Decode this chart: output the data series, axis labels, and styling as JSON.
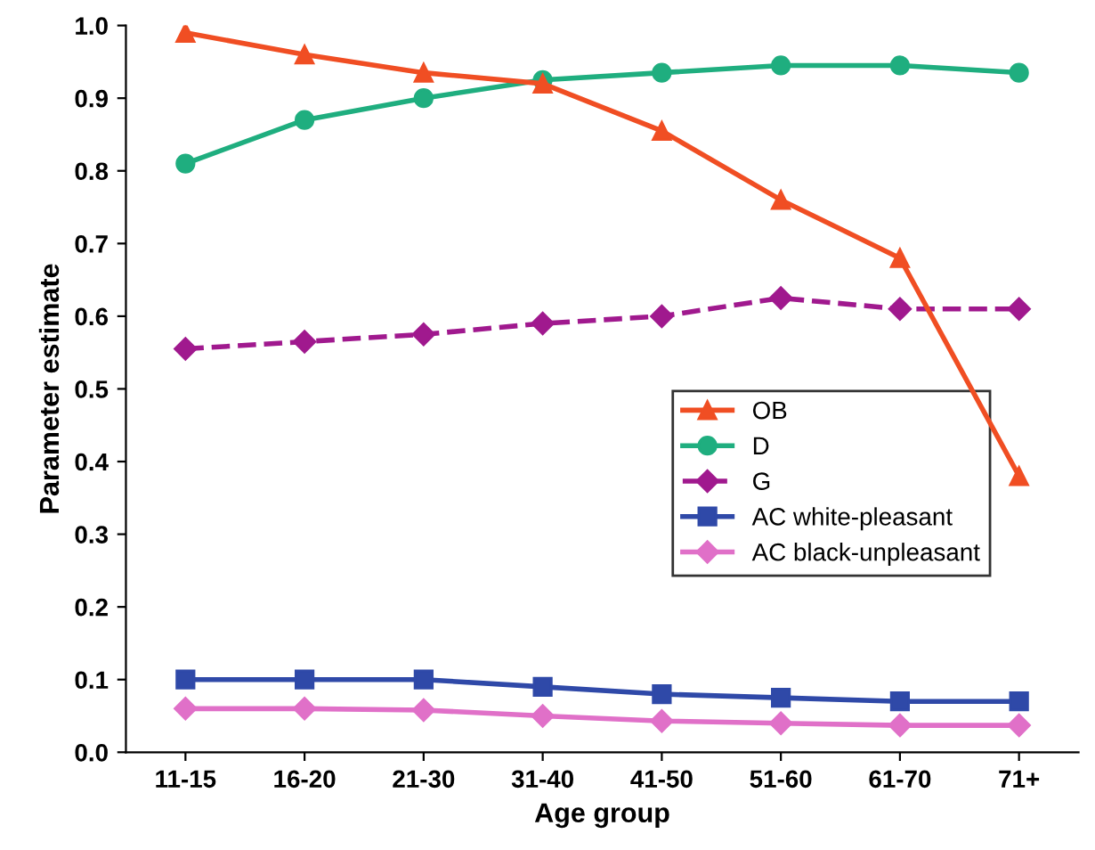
{
  "chart_data": {
    "type": "line",
    "xlabel": "Age group",
    "ylabel": "Parameter estimate",
    "categories": [
      "11-15",
      "16-20",
      "21-30",
      "31-40",
      "41-50",
      "51-60",
      "61-70",
      "71+"
    ],
    "series": [
      {
        "name": "OB",
        "color": "#f04e23",
        "marker": "triangle",
        "line_style": "solid",
        "values": [
          0.99,
          0.96,
          0.935,
          0.92,
          0.855,
          0.76,
          0.68,
          0.38
        ]
      },
      {
        "name": "D",
        "color": "#1fae7f",
        "marker": "circle",
        "line_style": "solid",
        "values": [
          0.81,
          0.87,
          0.9,
          0.925,
          0.935,
          0.945,
          0.945,
          0.935
        ]
      },
      {
        "name": "G",
        "color": "#a0198e",
        "marker": "diamond",
        "line_style": "dashed",
        "values": [
          0.555,
          0.565,
          0.575,
          0.59,
          0.6,
          0.625,
          0.61,
          0.61
        ]
      },
      {
        "name": "AC white-pleasant",
        "color": "#2f49a8",
        "marker": "square",
        "line_style": "solid",
        "values": [
          0.1,
          0.1,
          0.1,
          0.09,
          0.08,
          0.075,
          0.07,
          0.07
        ]
      },
      {
        "name": "AC black-unpleasant",
        "color": "#e070c8",
        "marker": "diamond",
        "line_style": "solid",
        "values": [
          0.06,
          0.06,
          0.058,
          0.05,
          0.043,
          0.04,
          0.037,
          0.037
        ]
      }
    ],
    "ylim": [
      0,
      1.0
    ],
    "yticks": [
      {
        "value": 0,
        "label": "0.0"
      },
      0.1,
      0.2,
      0.3,
      0.4,
      0.5,
      0.6,
      0.7,
      0.8,
      0.9,
      {
        "value": 1.0,
        "label": "1.0"
      }
    ],
    "grid": false,
    "legend": "center right"
  }
}
